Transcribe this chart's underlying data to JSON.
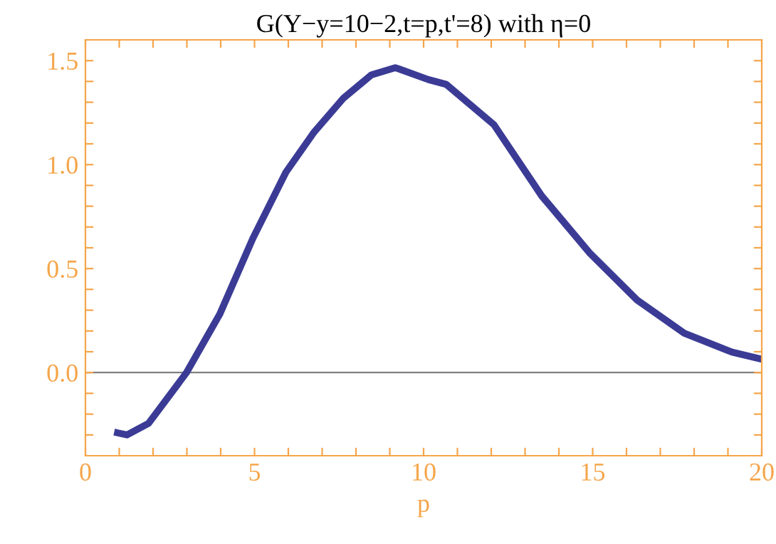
{
  "chart_data": {
    "type": "line",
    "title": "G(Y−y=10−2,t=p,t'=8) with η=0",
    "xlabel": "p",
    "x": [
      0.95,
      1.23,
      1.87,
      2.99,
      3.97,
      4.95,
      5.93,
      6.77,
      7.62,
      8.46,
      9.16,
      9.26,
      10.14,
      10.67,
      12.08,
      13.49,
      14.9,
      16.31,
      17.71,
      19.12,
      20
    ],
    "series": [
      {
        "color": "#3b3b96",
        "values": [
          -0.29,
          -0.3,
          -0.244,
          0,
          0.28,
          0.645,
          0.964,
          1.158,
          1.318,
          1.432,
          1.466,
          1.461,
          1.409,
          1.386,
          1.192,
          0.85,
          0.577,
          0.349,
          0.189,
          0.098,
          0.064
        ]
      }
    ],
    "xlim": [
      0,
      20
    ],
    "ylim": [
      -0.4,
      1.6
    ],
    "xticks": [
      0,
      {
        "value": 1,
        "label": null
      },
      {
        "value": 2,
        "label": null
      },
      {
        "value": 3,
        "label": null
      },
      {
        "value": 4,
        "label": null
      },
      5,
      {
        "value": 6,
        "label": null
      },
      {
        "value": 7,
        "label": null
      },
      {
        "value": 8,
        "label": null
      },
      {
        "value": 9,
        "label": null
      },
      10,
      {
        "value": 11,
        "label": null
      },
      {
        "value": 12,
        "label": null
      },
      {
        "value": 13,
        "label": null
      },
      {
        "value": 14,
        "label": null
      },
      15,
      {
        "value": 16,
        "label": null
      },
      {
        "value": 17,
        "label": null
      },
      {
        "value": 18,
        "label": null
      },
      {
        "value": 19,
        "label": null
      },
      20
    ],
    "yticks": [
      {
        "value": -0.3,
        "label": null
      },
      {
        "value": -0.2,
        "label": null
      },
      {
        "value": -0.1,
        "label": null
      },
      {
        "value": 0,
        "label": "0.0"
      },
      {
        "value": 0.1,
        "label": null
      },
      {
        "value": 0.2,
        "label": null
      },
      {
        "value": 0.3,
        "label": null
      },
      {
        "value": 0.4,
        "label": null
      },
      0.5,
      {
        "value": 0.6,
        "label": null
      },
      {
        "value": 0.7,
        "label": null
      },
      {
        "value": 0.8,
        "label": null
      },
      {
        "value": 0.9,
        "label": null
      },
      {
        "value": 1,
        "label": "1.0"
      },
      {
        "value": 1.1,
        "label": null
      },
      {
        "value": 1.2,
        "label": null
      },
      {
        "value": 1.3,
        "label": null
      },
      {
        "value": 1.4,
        "label": null
      },
      1.5
    ],
    "ref_lines": [
      {
        "axis": "y",
        "value": 0,
        "color": "#808080"
      }
    ],
    "grid": false,
    "legend": false
  }
}
